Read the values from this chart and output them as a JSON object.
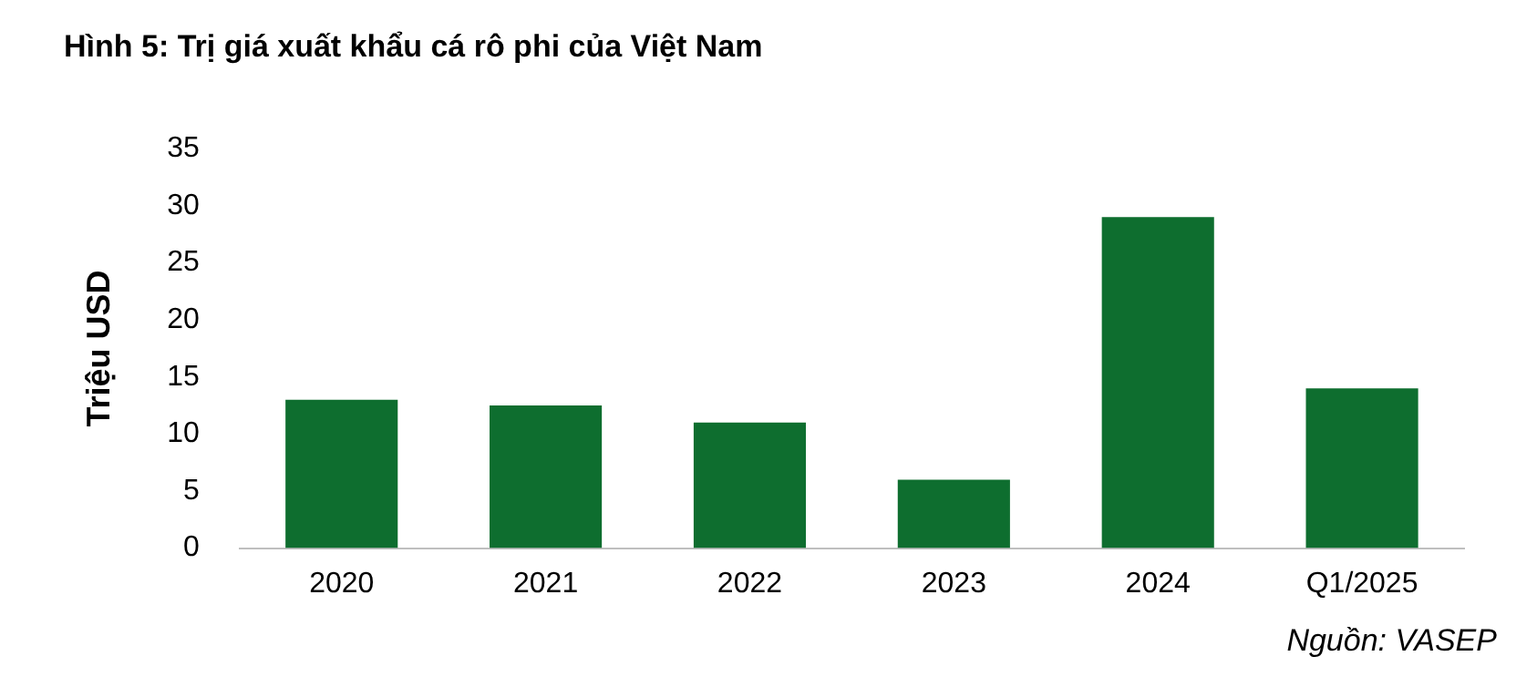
{
  "chart_data": {
    "type": "bar",
    "title": "Hình 5: Trị giá xuất khẩu cá rô phi của Việt Nam",
    "ylabel": "Triệu USD",
    "categories": [
      "2020",
      "2021",
      "2022",
      "2023",
      "2024",
      "Q1/2025"
    ],
    "values": [
      13,
      12.5,
      11,
      6,
      29,
      14
    ],
    "color": "#0e6e2f",
    "ylim": [
      0,
      35
    ],
    "yticks": [
      0,
      5,
      10,
      15,
      20,
      25,
      30,
      35
    ],
    "grid": false,
    "legend": false,
    "annotations": [
      "Nguồn: VASEP"
    ]
  }
}
